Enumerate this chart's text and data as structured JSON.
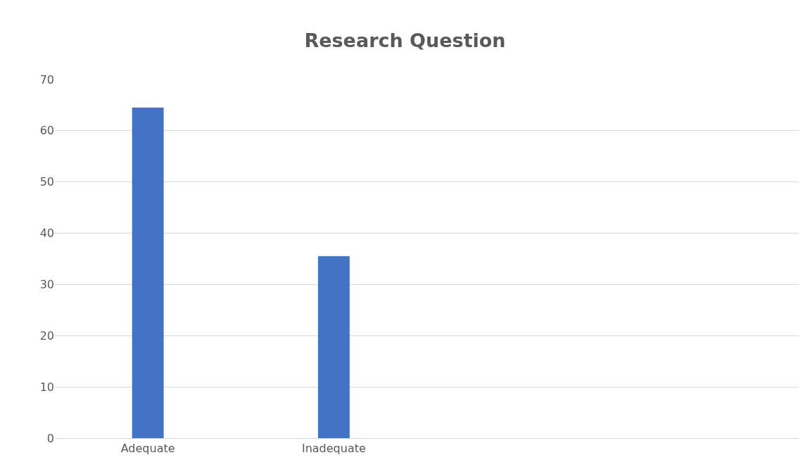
{
  "chart_data": {
    "type": "bar",
    "title": "Research Question",
    "categories": [
      "Adequate",
      "Inadequate",
      null,
      null
    ],
    "values": [
      64.5,
      35.5,
      null,
      null
    ],
    "color": "#4472c4",
    "ylim": [
      0,
      70
    ],
    "yticks": [
      0,
      10,
      20,
      30,
      40,
      50,
      60,
      70
    ],
    "grid": "y"
  }
}
